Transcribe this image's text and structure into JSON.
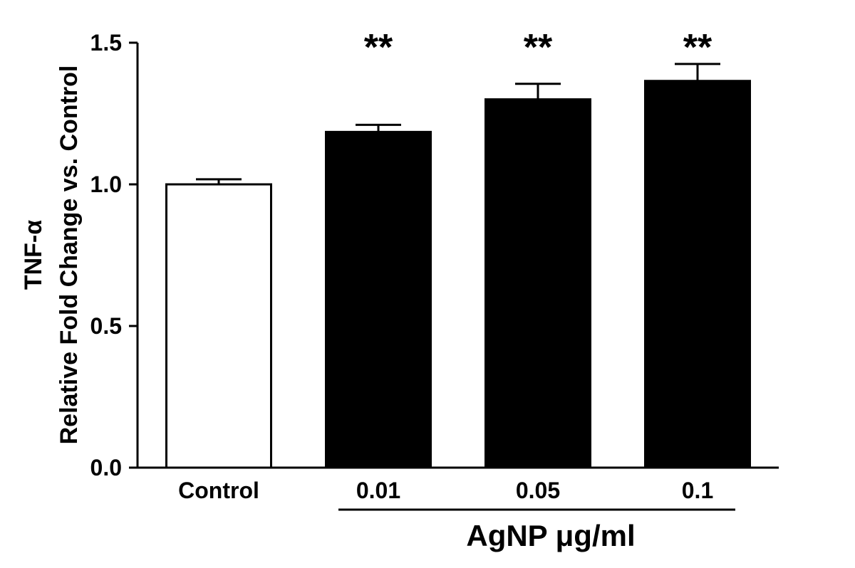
{
  "chart_data": {
    "type": "bar",
    "ylabel_line1": "TNF-α",
    "ylabel_line2": "Relative Fold Change vs. Control",
    "xgroup_label": "AgNP μg/ml",
    "ylim": [
      0,
      1.5
    ],
    "yticks": [
      {
        "value": 0.0,
        "label": "0.0"
      },
      {
        "value": 0.5,
        "label": "0.5"
      },
      {
        "value": 1.0,
        "label": "1.0"
      },
      {
        "value": 1.5,
        "label": "1.5"
      }
    ],
    "categories": [
      "Control",
      "0.01",
      "0.05",
      "0.1"
    ],
    "values": [
      1.0,
      1.185,
      1.3,
      1.365
    ],
    "errors": [
      0.018,
      0.025,
      0.055,
      0.06
    ],
    "fill": [
      "#ffffff",
      "#000000",
      "#000000",
      "#000000"
    ],
    "significance": [
      "",
      "**",
      "**",
      "**"
    ]
  }
}
